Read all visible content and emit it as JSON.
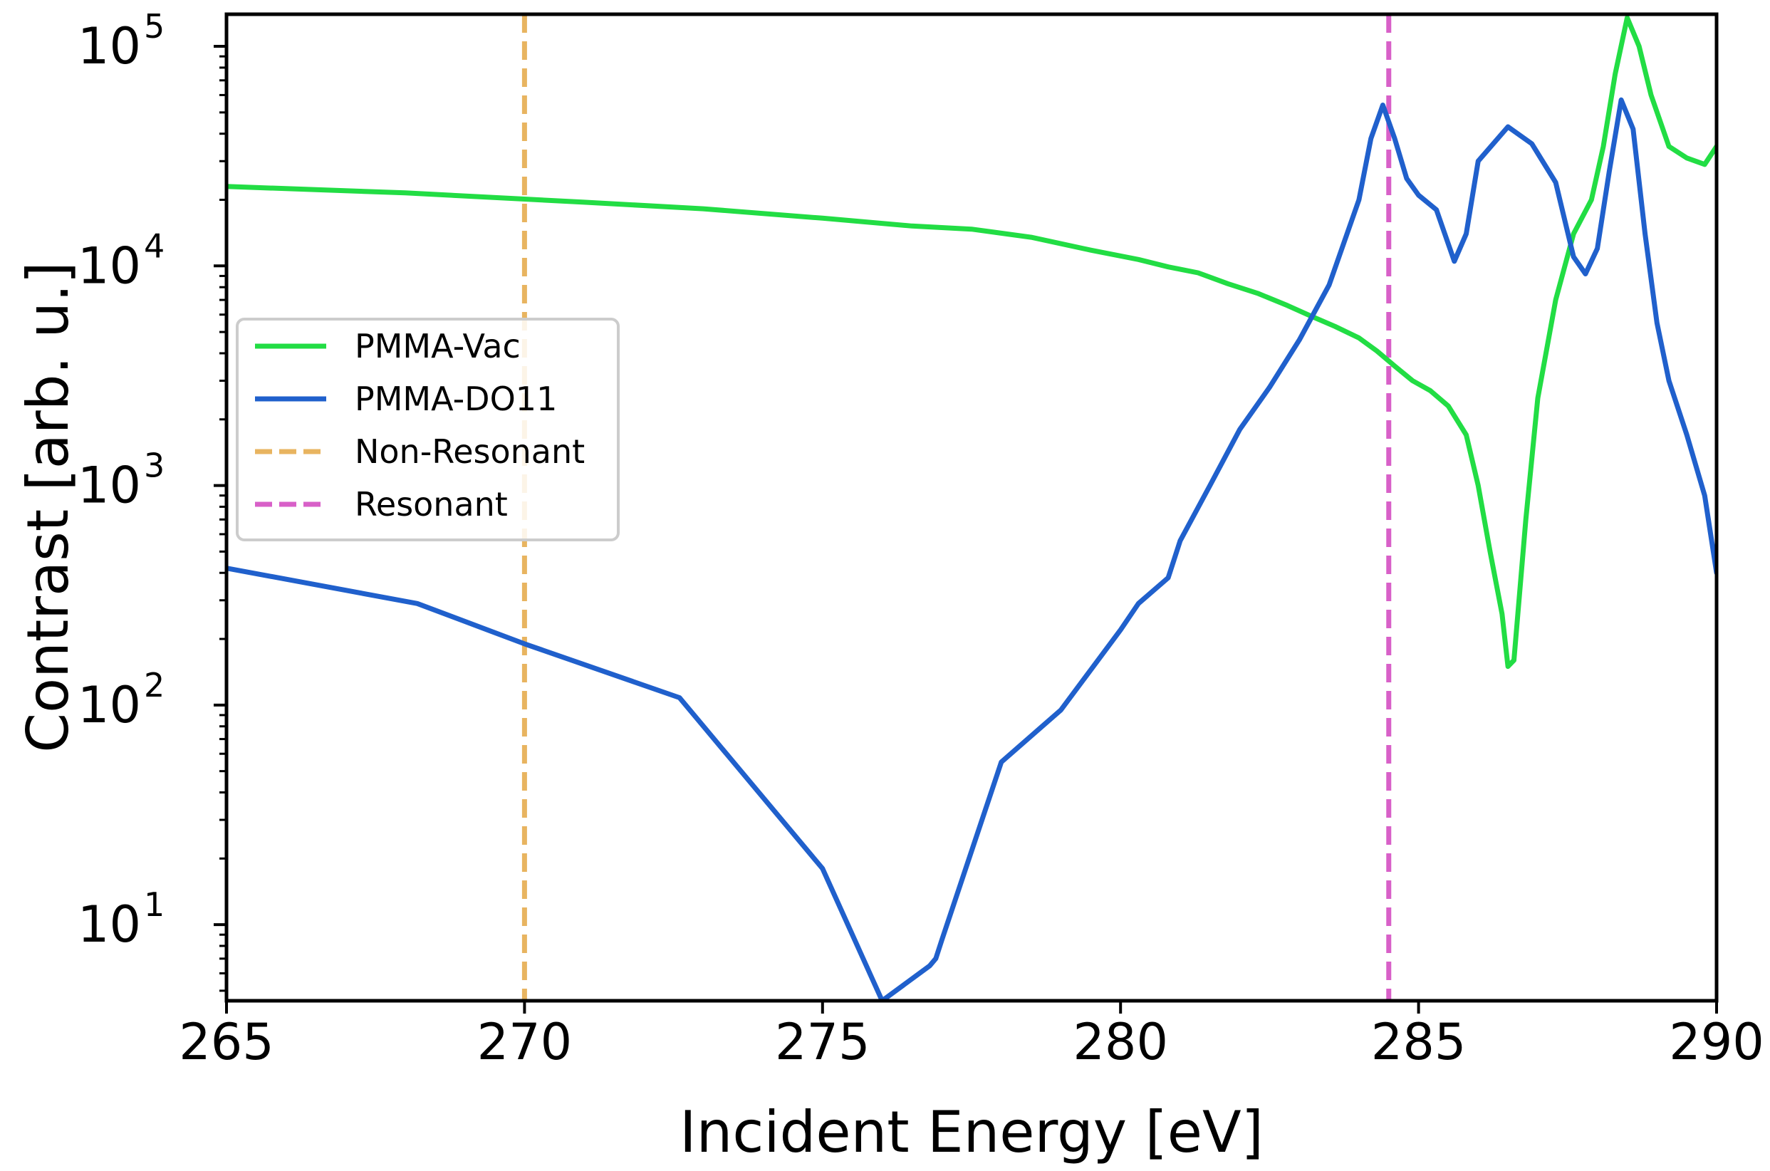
{
  "chart_data": {
    "type": "line",
    "xlabel": "Incident Energy [eV]",
    "ylabel": "Contrast [arb. u.]",
    "xlim": [
      265,
      290
    ],
    "ylim": [
      4.5,
      140000
    ],
    "yscale": "log",
    "xticks": [
      {
        "value": 265,
        "label": "265"
      },
      {
        "value": 270,
        "label": "270"
      },
      {
        "value": 275,
        "label": "275"
      },
      {
        "value": 280,
        "label": "280"
      },
      {
        "value": 285,
        "label": "285"
      },
      {
        "value": 290,
        "label": "290"
      }
    ],
    "yticks": [
      {
        "value": 10,
        "base": "10",
        "exp": "1"
      },
      {
        "value": 100,
        "base": "10",
        "exp": "2"
      },
      {
        "value": 1000,
        "base": "10",
        "exp": "3"
      },
      {
        "value": 10000,
        "base": "10",
        "exp": "4"
      },
      {
        "value": 100000,
        "base": "10",
        "exp": "5"
      }
    ],
    "legend_position": "center-left",
    "series": [
      {
        "name": "PMMA-Vac",
        "color": "#22dd44",
        "style": "solid",
        "x": [
          265,
          268,
          271,
          273,
          275,
          276.5,
          277.5,
          278.5,
          279.5,
          280.3,
          280.8,
          281.3,
          281.8,
          282.3,
          282.8,
          283.2,
          283.6,
          284,
          284.3,
          284.6,
          284.9,
          285.2,
          285.5,
          285.8,
          286.0,
          286.2,
          286.4,
          286.5,
          286.6,
          286.8,
          287.0,
          287.3,
          287.6,
          287.9,
          288.1,
          288.3,
          288.5,
          288.7,
          288.9,
          289.2,
          289.5,
          289.8,
          290
        ],
        "y": [
          23000,
          21500,
          19500,
          18200,
          16500,
          15200,
          14700,
          13500,
          11800,
          10700,
          9900,
          9300,
          8300,
          7500,
          6600,
          5900,
          5300,
          4700,
          4100,
          3500,
          3000,
          2700,
          2300,
          1700,
          1000,
          500,
          260,
          150,
          160,
          700,
          2500,
          7000,
          14000,
          20000,
          35000,
          75000,
          135000,
          100000,
          60000,
          35000,
          31000,
          29000,
          35000
        ]
      },
      {
        "name": "PMMA-DO11",
        "color": "#2060cc",
        "style": "solid",
        "x": [
          265,
          268.2,
          270,
          272.6,
          275,
          276,
          276.8,
          276.9,
          277,
          278,
          279,
          280,
          280.3,
          280.8,
          281,
          281.5,
          282,
          282.5,
          283,
          283.5,
          284.0,
          284.2,
          284.4,
          284.6,
          284.8,
          285.0,
          285.3,
          285.6,
          285.8,
          286.0,
          286.5,
          286.9,
          287.3,
          287.6,
          287.8,
          288.0,
          288.2,
          288.4,
          288.6,
          288.8,
          289.0,
          289.2,
          289.5,
          289.8,
          290
        ],
        "y": [
          420,
          290,
          190,
          108,
          18,
          4.5,
          6.5,
          7,
          8.5,
          55,
          95,
          220,
          290,
          380,
          560,
          1000,
          1800,
          2800,
          4600,
          8200,
          20000,
          38000,
          54000,
          38000,
          25000,
          21000,
          18000,
          10500,
          14000,
          30000,
          43000,
          36000,
          24000,
          11000,
          9200,
          12000,
          27000,
          57000,
          42000,
          14000,
          5500,
          3000,
          1700,
          900,
          400
        ]
      },
      {
        "name": "Non-Resonant",
        "color": "#e8b460",
        "style": "dashed",
        "xvline": 270
      },
      {
        "name": "Resonant",
        "color": "#d860c8",
        "style": "dashed",
        "xvline": 284.5
      }
    ]
  }
}
